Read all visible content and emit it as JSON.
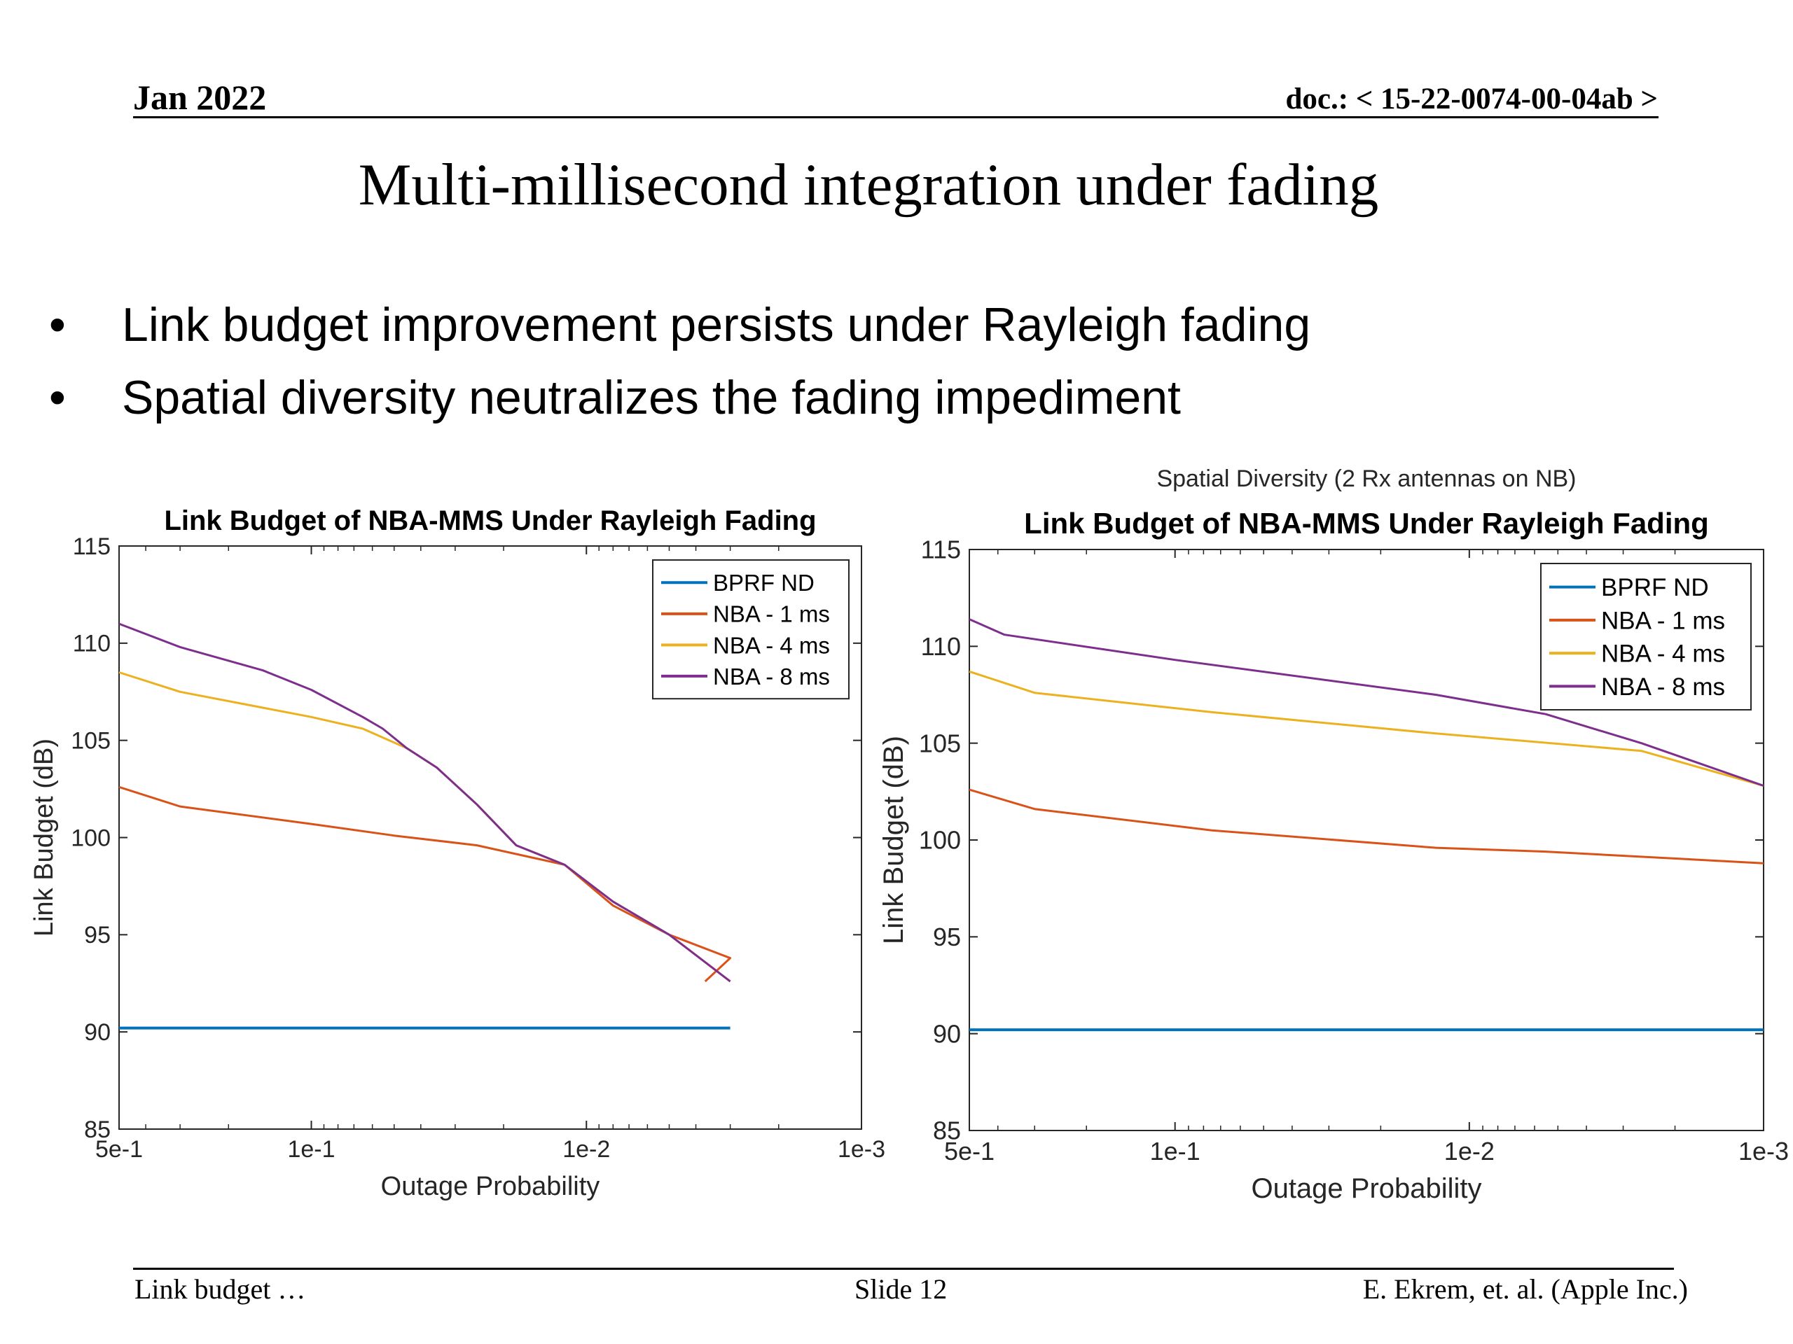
{
  "header": {
    "date": "Jan 2022",
    "doc": "doc.: < 15-22-0074-00-04ab >"
  },
  "title": "Multi-millisecond integration under fading",
  "bullets": [
    "Link budget improvement persists under Rayleigh fading",
    "Spatial diversity neutralizes the fading impediment"
  ],
  "colors": {
    "BPRF ND": "#0072BD",
    "NBA - 1 ms": "#D95319",
    "NBA - 4 ms": "#EDB120",
    "NBA - 8 ms": "#7E2F8E"
  },
  "chart_data": [
    {
      "type": "line",
      "suptitle": "",
      "title": "Link Budget of NBA-MMS Under Rayleigh Fading",
      "xlabel": "Outage Probability",
      "ylabel": "Link Budget (dB)",
      "xscale": "log",
      "xreverse": true,
      "xlim": [
        0.5,
        0.001
      ],
      "ylim": [
        85,
        115
      ],
      "xticks": [
        0.5,
        0.1,
        0.01,
        0.001
      ],
      "xticklabels": [
        "5e-1",
        "1e-1",
        "1e-2",
        "1e-3"
      ],
      "yticks": [
        85,
        90,
        95,
        100,
        105,
        110,
        115
      ],
      "grid": false,
      "legend": "top-right",
      "series": [
        {
          "name": "BPRF ND",
          "x": [
            0.5,
            0.003
          ],
          "y": [
            90.2,
            90.2
          ]
        },
        {
          "name": "NBA - 1 ms",
          "x": [
            0.5,
            0.3,
            0.1,
            0.05,
            0.025,
            0.012,
            0.008,
            0.005,
            0.003,
            0.0037
          ],
          "y": [
            102.6,
            101.6,
            100.7,
            100.1,
            99.6,
            98.6,
            96.5,
            95.0,
            93.8,
            92.6
          ]
        },
        {
          "name": "NBA - 4 ms",
          "x": [
            0.5,
            0.3,
            0.1,
            0.065,
            0.045,
            0.035,
            0.025,
            0.018,
            0.012,
            0.008,
            0.005,
            0.003
          ],
          "y": [
            108.5,
            107.5,
            106.2,
            105.6,
            104.6,
            103.6,
            101.7,
            99.6,
            98.6,
            96.7,
            95.0,
            92.6
          ]
        },
        {
          "name": "NBA - 8 ms",
          "x": [
            0.5,
            0.3,
            0.15,
            0.1,
            0.065,
            0.055,
            0.045,
            0.035,
            0.025,
            0.018,
            0.012,
            0.008,
            0.005,
            0.003
          ],
          "y": [
            111.0,
            109.8,
            108.6,
            107.6,
            106.2,
            105.6,
            104.6,
            103.6,
            101.7,
            99.6,
            98.6,
            96.7,
            95.0,
            92.6
          ]
        }
      ]
    },
    {
      "type": "line",
      "suptitle": "Spatial Diversity (2 Rx antennas on NB)",
      "title": "Link Budget of NBA-MMS Under Rayleigh Fading",
      "xlabel": "Outage Probability",
      "ylabel": "Link Budget (dB)",
      "xscale": "log",
      "xreverse": true,
      "xlim": [
        0.5,
        0.001
      ],
      "ylim": [
        85,
        115
      ],
      "xticks": [
        0.5,
        0.1,
        0.01,
        0.001
      ],
      "xticklabels": [
        "5e-1",
        "1e-1",
        "1e-2",
        "1e-3"
      ],
      "yticks": [
        85,
        90,
        95,
        100,
        105,
        110,
        115
      ],
      "grid": false,
      "legend": "top-right",
      "series": [
        {
          "name": "BPRF ND",
          "x": [
            0.5,
            0.001
          ],
          "y": [
            90.2,
            90.2
          ]
        },
        {
          "name": "NBA - 1 ms",
          "x": [
            0.5,
            0.3,
            0.075,
            0.013,
            0.0055,
            0.001
          ],
          "y": [
            102.6,
            101.6,
            100.5,
            99.6,
            99.4,
            98.8
          ]
        },
        {
          "name": "NBA - 4 ms",
          "x": [
            0.5,
            0.3,
            0.075,
            0.013,
            0.0026,
            0.001
          ],
          "y": [
            108.7,
            107.6,
            106.6,
            105.5,
            104.6,
            102.8
          ]
        },
        {
          "name": "NBA - 8 ms",
          "x": [
            0.5,
            0.38,
            0.1,
            0.013,
            0.0055,
            0.0026,
            0.001
          ],
          "y": [
            111.4,
            110.6,
            109.3,
            107.5,
            106.5,
            105.0,
            102.8
          ]
        }
      ]
    }
  ],
  "footer": {
    "left": "Link budget …",
    "center": "Slide 12",
    "right": "E. Ekrem, et. al. (Apple Inc.)"
  }
}
